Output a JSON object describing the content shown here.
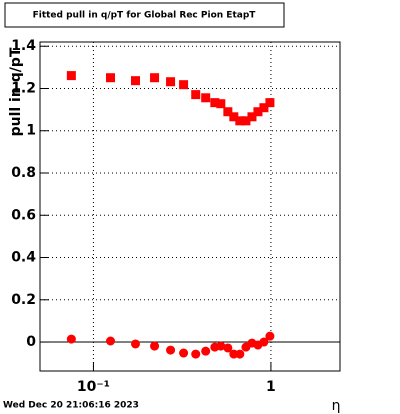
{
  "chart_data": {
    "type": "scatter",
    "title": "Fitted pull in q/pT for Global Rec Pion EtapT",
    "y_label": "pull in q/pT",
    "x_label": "η",
    "footer": "Wed Dec 20 21:06:16 2023",
    "log_x": true,
    "grid": true,
    "xlim": [
      0.05,
      2.45
    ],
    "xticks": [
      {
        "value": 0.1,
        "label": "10⁻¹"
      },
      1
    ],
    "ylim": [
      -0.137,
      1.42
    ],
    "yticks": [
      0,
      0.2,
      0.4,
      0.6,
      0.8,
      1,
      1.2,
      1.4
    ],
    "series": [
      {
        "color": "#ff0000",
        "marker": "square",
        "x": [
          0.0751,
          0.1248,
          0.1726,
          0.221,
          0.272,
          0.322,
          0.377,
          0.429,
          0.483,
          0.522,
          0.572,
          0.618,
          0.668,
          0.723,
          0.782,
          0.845,
          0.913,
          0.987
        ],
        "values": [
          1.261,
          1.251,
          1.237,
          1.251,
          1.232,
          1.218,
          1.171,
          1.156,
          1.133,
          1.128,
          1.09,
          1.066,
          1.047,
          1.047,
          1.066,
          1.09,
          1.109,
          1.133
        ]
      },
      {
        "color": "#ff0000",
        "marker": "circle",
        "x": [
          0.0751,
          0.1248,
          0.1726,
          0.221,
          0.272,
          0.322,
          0.377,
          0.429,
          0.483,
          0.522,
          0.572,
          0.618,
          0.668,
          0.723,
          0.782,
          0.845,
          0.913,
          0.987
        ],
        "values": [
          0.014,
          0.005,
          -0.009,
          -0.019,
          -0.038,
          -0.052,
          -0.057,
          -0.043,
          -0.024,
          -0.019,
          -0.028,
          -0.057,
          -0.057,
          -0.024,
          -0.005,
          -0.014,
          0,
          0.028
        ]
      }
    ]
  }
}
